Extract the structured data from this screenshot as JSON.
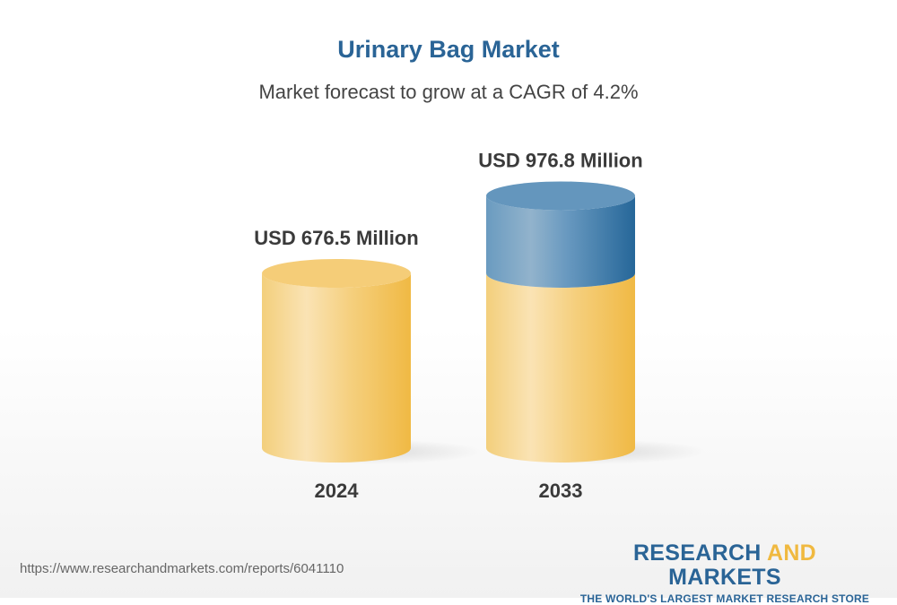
{
  "header": {
    "title": "Urinary Bag Market",
    "subtitle": "Market forecast to grow at a CAGR of 4.2%"
  },
  "chart_data": {
    "type": "bar",
    "style": "3d-cylinder",
    "title": "Urinary Bag Market",
    "subtitle": "Market forecast to grow at a CAGR of 4.2%",
    "categories": [
      "2024",
      "2033"
    ],
    "values": [
      676.5,
      976.8
    ],
    "data_labels": [
      "USD 676.5 Million",
      "USD 976.8 Million"
    ],
    "unit": "USD Million",
    "cagr_percent": 4.2,
    "colors": {
      "base": "#f2c55e",
      "growth": "#4a82b0"
    }
  },
  "footer": {
    "url": "https://www.researchandmarkets.com/reports/6041110",
    "logo_part1": "RESEARCH ",
    "logo_part2": "AND",
    "logo_part3": " MARKETS",
    "logo_tagline": "THE WORLD'S LARGEST MARKET RESEARCH STORE"
  }
}
